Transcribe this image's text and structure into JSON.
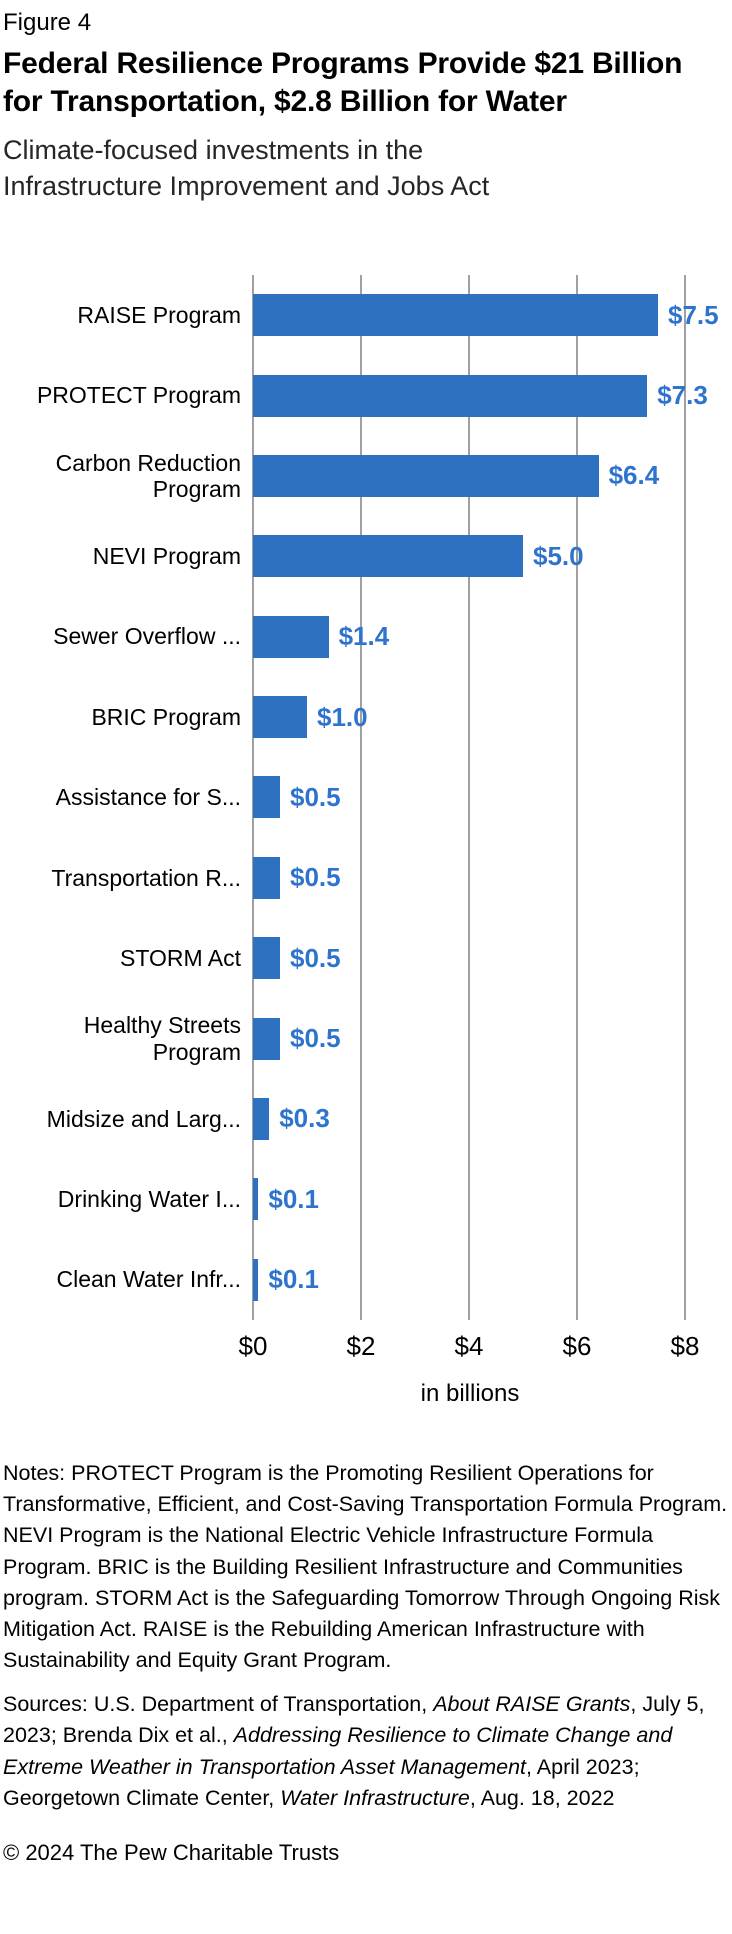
{
  "header": {
    "figure_label": "Figure 4",
    "title": "Federal Resilience Programs Provide $21 Billion for Transportation, $2.8 Billion for Water",
    "subtitle": "Climate-focused investments in the Infrastructure Improvement and Jobs Act"
  },
  "chart_data": {
    "type": "bar",
    "orientation": "horizontal",
    "categories": [
      "RAISE Program",
      "PROTECT Program",
      "Carbon Reduction Program",
      "NEVI Program",
      "Sewer Overflow ...",
      "BRIC Program",
      "Assistance for S...",
      "Transportation R...",
      "STORM Act",
      "Healthy Streets Program",
      "Midsize and Larg...",
      "Drinking Water I...",
      "Clean Water Infr..."
    ],
    "values": [
      7.5,
      7.3,
      6.4,
      5.0,
      1.4,
      1.0,
      0.5,
      0.5,
      0.5,
      0.5,
      0.3,
      0.1,
      0.1
    ],
    "value_label_prefix": "$",
    "xticks": [
      "$0",
      "$2",
      "$4",
      "$6",
      "$8"
    ],
    "xtick_values": [
      0,
      2,
      4,
      6,
      8
    ],
    "xlim": [
      0,
      8
    ],
    "xlabel": "in billions",
    "grid": true,
    "legend": false,
    "bar_color": "#2E71C1",
    "value_label_color": "#2E74CC",
    "gridline_color": "#A0A0A0"
  },
  "notes": "Notes: PROTECT Program is the Promoting Resilient Operations for Transformative, Efficient, and Cost-Saving Transportation Formula Program. NEVI Program is the National Electric Vehicle Infrastructure Formula Program. BRIC is the Building Resilient Infrastructure and Communities program. STORM Act is the Safeguarding Tomorrow Through Ongoing Risk Mitigation Act. RAISE is the Rebuilding American Infrastructure with Sustainability and Equity Grant Program.",
  "sources_parts": [
    {
      "text": "Sources: U.S. Department of Transportation, ",
      "italic": false
    },
    {
      "text": "About RAISE Grants",
      "italic": true
    },
    {
      "text": ", July 5, 2023; Brenda Dix et al., ",
      "italic": false
    },
    {
      "text": "Addressing Resilience to Climate Change and Extreme Weather in Transportation Asset Management",
      "italic": true
    },
    {
      "text": ", April 2023; Georgetown Climate Center, ",
      "italic": false
    },
    {
      "text": "Water Infrastructure",
      "italic": true
    },
    {
      "text": ", Aug. 18, 2022",
      "italic": false
    }
  ],
  "footer": "© 2024 The Pew Charitable Trusts"
}
